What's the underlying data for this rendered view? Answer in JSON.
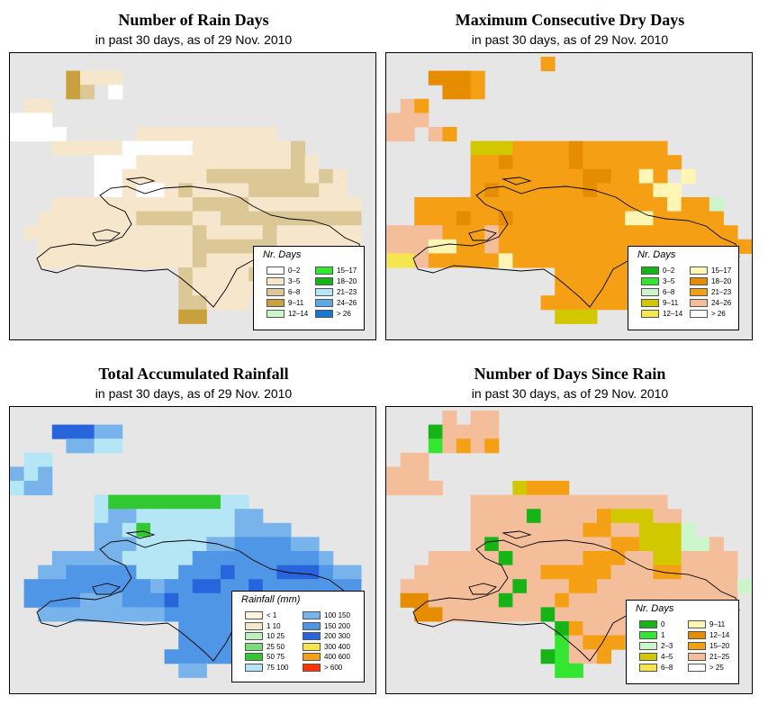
{
  "subtitle": "in past 30 days, as of  29 Nov. 2010",
  "panels": [
    {
      "title": "Number of Rain Days",
      "subtitle": "in past 30 days, as of  29 Nov. 2010",
      "legend_title": "Nr. Days",
      "legend": [
        {
          "label": "0–2",
          "color": "#ffffff"
        },
        {
          "label": "3–5",
          "color": "#f5e6cc"
        },
        {
          "label": "6–8",
          "color": "#dcc896"
        },
        {
          "label": "9–11",
          "color": "#c8a03c"
        },
        {
          "label": "12–14",
          "color": "#ccf5cc"
        },
        {
          "label": "15–17",
          "color": "#32e632"
        },
        {
          "label": "18–20",
          "color": "#16b416"
        },
        {
          "label": "21–23",
          "color": "#b4e6f5"
        },
        {
          "label": "24–26",
          "color": "#5aaae6"
        },
        {
          "label": "> 26",
          "color": "#1478d2"
        }
      ],
      "palette": {
        "a": "#ffffff",
        "b": "#f5e6cc",
        "c": "#dcc896",
        "d": "#c8a03c"
      },
      "grid": [
        "..........................",
        "....dbbb..................",
        "....dc.a..................",
        ".bb.......................",
        "aaa.......................",
        "aaaa.....bbbbbbbbbb.......",
        "...bbbbbaaaaabbbbbbbc.....",
        "......aaabbbbbbbbbbbcb....",
        "......aabbbbbbcccccccbcb..",
        "......aabaabcbbbbcccccbb..",
        "...bbbbbbbbbbccccbbbbbbbb.",
        "..bbbbbbbccccbbcccccccccc.",
        ".bbbbbbbbbbbbcbbbbcbbbbbb.",
        "..bbbbbbbbbbbccccccbbbbbb.",
        "..bbbbbbbbbbbcbbbbbbcbb...",
        "............cbbbbcb.......",
        "............cbbbbb........",
        "............ccbbb.........",
        "............dd............",
        ".........................."
      ]
    },
    {
      "title": "Maximum Consecutive Dry Days",
      "subtitle": "in past 30 days, as of  29 Nov. 2010",
      "legend_title": "Nr. Days",
      "legend": [
        {
          "label": "0–2",
          "color": "#16b416"
        },
        {
          "label": "3–5",
          "color": "#32e632"
        },
        {
          "label": "6–8",
          "color": "#ccf5cc"
        },
        {
          "label": "9–11",
          "color": "#d2c800"
        },
        {
          "label": "12–14",
          "color": "#f5e650"
        },
        {
          "label": "15–17",
          "color": "#fff5b4"
        },
        {
          "label": "18–20",
          "color": "#e68c00"
        },
        {
          "label": "21–23",
          "color": "#f5a014"
        },
        {
          "label": "24–26",
          "color": "#f5be9b"
        },
        {
          "label": "> 26",
          "color": "#ffffff"
        }
      ],
      "palette": {
        "o": "#f5a014",
        "e": "#e68c00",
        "s": "#f5be9b",
        "y": "#fff5b4",
        "j": "#f5e650",
        "k": "#d2c800",
        "g": "#ccf5cc"
      },
      "grid": [
        "...........o..............",
        "...eeeo...................",
        "....eeo...................",
        ".so.......................",
        "sss.......................",
        "ss.so.....................",
        "......kkkooooeoooooo......",
        "......ooeooooeooooooo.....",
        "......ooooooooeeooyo.y....",
        "......oeooooooeooooyy.....",
        "..ooooooooooooooooooyoog..",
        "..oooeooeooooooooyyooooo..",
        "ssssooosooooooooooooooooo.",
        "sssyyoosoooooooooooooooooo",
        "jjsoooooyoooooooooooooss..",
        "............oooooooo......",
        "............ooooooo.......",
        "...........ooooooo........",
        "............kkk...........",
        ".........................."
      ]
    },
    {
      "title": "Total Accumulated Rainfall",
      "subtitle": "in past 30 days, as of  29 Nov. 2010",
      "legend_title": "Rainfall (mm)",
      "legend": [
        {
          "label": "< 1",
          "color": "#fff5dc"
        },
        {
          "label": "1   10",
          "color": "#f5e6cc"
        },
        {
          "label": "10   25",
          "color": "#bef0be"
        },
        {
          "label": "25   50",
          "color": "#78dc78"
        },
        {
          "label": "50   75",
          "color": "#32c832"
        },
        {
          "label": "75   100",
          "color": "#b4e6f5"
        },
        {
          "label": "100   150",
          "color": "#78b4eb"
        },
        {
          "label": "150   200",
          "color": "#5096e6"
        },
        {
          "label": "200   300",
          "color": "#2864dc"
        },
        {
          "label": "300   400",
          "color": "#f5e650"
        },
        {
          "label": "400   600",
          "color": "#f5a014"
        },
        {
          "label": "> 600",
          "color": "#ff3200"
        }
      ],
      "palette": {
        "l": "#b4e6f5",
        "m": "#78b4eb",
        "n": "#5096e6",
        "p": "#2864dc",
        "q": "#32c832"
      },
      "grid": [
        "..........................",
        "...pppmm..................",
        "....mmll..................",
        ".ll.......................",
        "mlm.......................",
        "lmm.......................",
        "......lqqqqqqqqll.........",
        "......lmmlllllllmm........",
        "......mmlqllllllmmmm......",
        "......mmmlllllmmnnnnmm....",
        "...mmmmmlllllnnnnnnnnnm...",
        "..mmnnnnnlllnnnpnnnpppnmm.",
        ".nnnnnnnnnmnnppnnpnnnnnnn.",
        ".nnnnmmmnnnpnnnnnnnnnnnnm.",
        "..mmmmmmmmmnnnnnnnnnnnmm..",
        "............nnnnnn........",
        "............nnnnn.........",
        "...........nnnnn..........",
        "............mm............",
        ".........................."
      ]
    },
    {
      "title": "Number of Days Since Rain",
      "subtitle": "in past 30 days, as of  29 Nov. 2010",
      "legend_title": "Nr. Days",
      "legend": [
        {
          "label": "0",
          "color": "#16b416"
        },
        {
          "label": "1",
          "color": "#32e632"
        },
        {
          "label": "2–3",
          "color": "#ccf5cc"
        },
        {
          "label": "4–5",
          "color": "#d2c800"
        },
        {
          "label": "6–8",
          "color": "#f5e650"
        },
        {
          "label": "9–11",
          "color": "#fff5b4"
        },
        {
          "label": "12–14",
          "color": "#e68c00"
        },
        {
          "label": "15–20",
          "color": "#f5a014"
        },
        {
          "label": "21–25",
          "color": "#f5be9b"
        },
        {
          "label": "> 25",
          "color": "#ffffff"
        }
      ],
      "palette": {
        "s": "#f5be9b",
        "o": "#f5a014",
        "e": "#e68c00",
        "k": "#d2c800",
        "j": "#f5e650",
        "g": "#ccf5cc",
        "G": "#16b416",
        "L": "#32e632"
      },
      "grid": [
        "....s.ss..................",
        "...Gssss..................",
        "...Lsoso..................",
        ".ss.......................",
        "sss.......................",
        "ssss.....kooo.............",
        "......ssssssssssssss......",
        "......ssssGssssokkkss.....",
        "......ssssssssoosskkkg....",
        "......sGssssssssookkkggs..",
        "...sssssGsssssooosskkssss.",
        "..sssssssssooooosssoossss.",
        ".ssssssssGsssoossssssssssg",
        ".eesssssGsssossssssssssss.",
        "..eesssssssGsssssssssss...",
        "............Gossss........",
        "............Lsooo.........",
        "...........GLsso..........",
        "............LL............",
        ".........................."
      ]
    }
  ]
}
